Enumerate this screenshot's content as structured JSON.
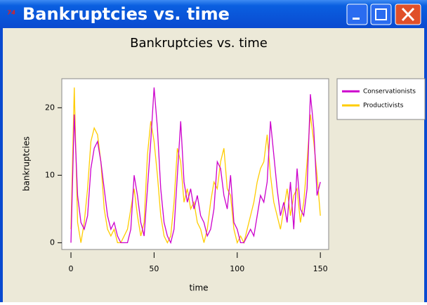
{
  "window": {
    "title": "Bankruptcies vs. time"
  },
  "chart_data": {
    "type": "line",
    "title": "Bankruptcies vs. time",
    "x_label": "time",
    "y_label": "bankruptcies",
    "x": [
      0,
      2,
      4,
      6,
      8,
      10,
      12,
      14,
      16,
      18,
      20,
      22,
      24,
      26,
      28,
      30,
      32,
      34,
      36,
      38,
      40,
      42,
      44,
      46,
      48,
      50,
      52,
      54,
      56,
      58,
      60,
      62,
      64,
      66,
      68,
      70,
      72,
      74,
      76,
      78,
      80,
      82,
      84,
      86,
      88,
      90,
      92,
      94,
      96,
      98,
      100,
      102,
      104,
      106,
      108,
      110,
      112,
      114,
      116,
      118,
      120,
      122,
      124,
      126,
      128,
      130,
      132,
      134,
      136,
      138,
      140,
      142,
      144,
      146,
      148,
      150
    ],
    "series": [
      {
        "name": "Conservationists",
        "color": "#cc00cc",
        "values": [
          0,
          19,
          7,
          3,
          2,
          4,
          11,
          14,
          15,
          12,
          8,
          4,
          2,
          3,
          1,
          0,
          0,
          0,
          2,
          10,
          7,
          3,
          1,
          8,
          15,
          23,
          17,
          8,
          3,
          1,
          0,
          2,
          10,
          18,
          9,
          6,
          8,
          5,
          7,
          4,
          3,
          1,
          2,
          5,
          12,
          11,
          7,
          5,
          10,
          3,
          2,
          0,
          0,
          1,
          2,
          1,
          4,
          7,
          6,
          9,
          18,
          13,
          8,
          4,
          6,
          3,
          9,
          2,
          11,
          5,
          4,
          8,
          22,
          17,
          7,
          9
        ]
      },
      {
        "name": "Productivists",
        "color": "#ffcc00",
        "values": [
          2,
          23,
          3,
          0,
          3,
          8,
          15,
          17,
          16,
          12,
          5,
          2,
          1,
          2,
          0,
          0,
          1,
          2,
          5,
          8,
          4,
          1,
          3,
          13,
          18,
          15,
          10,
          4,
          1,
          0,
          1,
          6,
          14,
          12,
          6,
          8,
          5,
          6,
          3,
          2,
          0,
          2,
          6,
          9,
          8,
          12,
          14,
          8,
          7,
          2,
          0,
          1,
          0,
          2,
          4,
          6,
          9,
          11,
          12,
          16,
          10,
          6,
          4,
          2,
          5,
          8,
          4,
          7,
          8,
          3,
          6,
          12,
          19,
          15,
          10,
          4
        ]
      }
    ],
    "xlim": [
      -5.5,
      155
    ],
    "xticks": [
      0,
      50,
      100,
      150
    ],
    "ylim": [
      -1,
      24.3
    ],
    "yticks": [
      0,
      10,
      20
    ],
    "legend": "right"
  }
}
